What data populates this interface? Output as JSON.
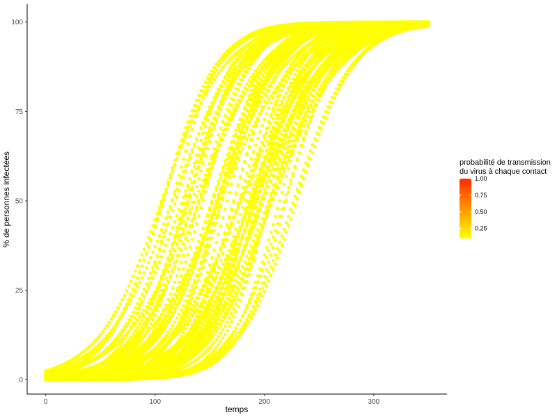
{
  "chart_data": {
    "type": "scatter",
    "title": "",
    "xlabel": "temps",
    "ylabel": "% de personnes infectées",
    "xlim": [
      -17,
      367
    ],
    "ylim": [
      -4,
      105
    ],
    "x_ticks": [
      0,
      100,
      200,
      300
    ],
    "y_ticks": [
      0,
      25,
      50,
      75,
      100
    ],
    "grid": false,
    "point_color": "#ffff00",
    "point_color_value": 0.1,
    "legend": {
      "position": "right",
      "title_lines": [
        "probabilité de transmission",
        "du virus à chaque contact"
      ],
      "labels": [
        "1.00",
        "0.75",
        "0.50",
        "0.25"
      ],
      "values": [
        1.0,
        0.75,
        0.5,
        0.25
      ],
      "range": [
        0.1,
        1.0
      ],
      "color_low": "#ffff00",
      "color_high": "#ff2a00"
    },
    "series_summary": {
      "n_curves": 60,
      "t_end": 350,
      "midpoint_range": [
        105,
        230
      ],
      "growth_rate_range": [
        0.028,
        0.048
      ],
      "y_start": 0,
      "y_end": 100
    }
  }
}
